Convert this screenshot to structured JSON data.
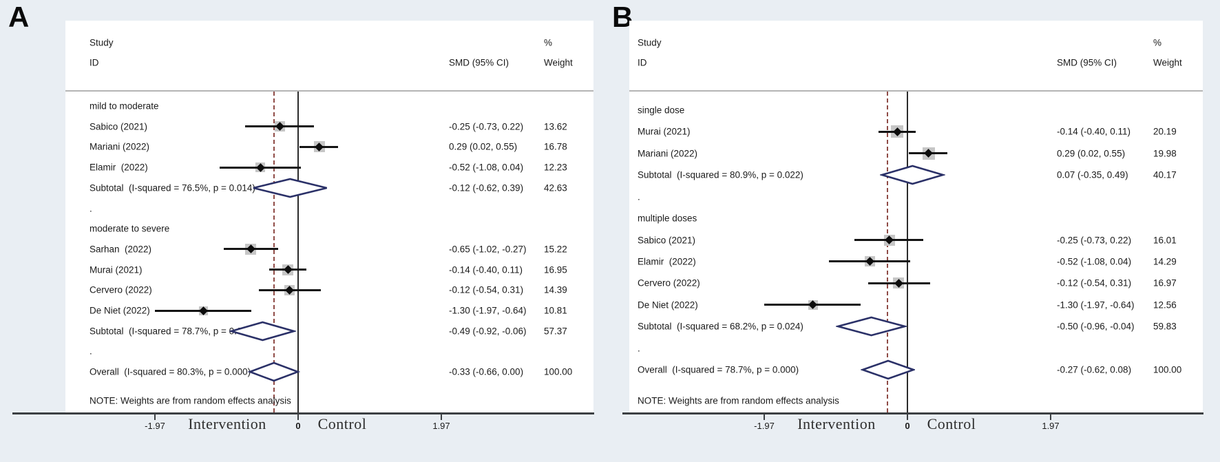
{
  "chart_data": {
    "type": "forest",
    "note_shared": "NOTE: Weights are from random effects analysis",
    "colors": {
      "background": "#e9eef3",
      "plot_background": "#ffffff",
      "diamond_outline": "#2b3168",
      "overall_dashed_line": "#8f4b46",
      "ci_line": "#141414",
      "text": "#1b1b1b"
    },
    "panels": [
      {
        "panel_label": "A",
        "columns": {
          "study_line1": "Study",
          "study_line2": "ID",
          "pct": "%",
          "smd": "SMD (95% CI)",
          "weight": "Weight"
        },
        "note": "NOTE: Weights are from random effects analysis",
        "axis": {
          "tick_labels": [
            "-1.97",
            "0",
            "1.97"
          ],
          "tick_values": [
            -1.97,
            0,
            1.97
          ],
          "left_label": "Intervention",
          "right_label": "Control",
          "null_line": 0,
          "overall_dashed_at": -0.33
        },
        "rows": [
          {
            "kind": "group",
            "label": "mild to moderate"
          },
          {
            "kind": "study",
            "label": "Sabico (2021)",
            "est": -0.25,
            "lo": -0.73,
            "hi": 0.22,
            "smd_text": "-0.25 (-0.73, 0.22)",
            "weight": 13.62,
            "weight_text": "13.62"
          },
          {
            "kind": "study",
            "label": "Mariani (2022)",
            "est": 0.29,
            "lo": 0.02,
            "hi": 0.55,
            "smd_text": "0.29 (0.02, 0.55)",
            "weight": 16.78,
            "weight_text": "16.78"
          },
          {
            "kind": "study",
            "label": "Elamir  (2022)",
            "est": -0.52,
            "lo": -1.08,
            "hi": 0.04,
            "smd_text": "-0.52 (-1.08, 0.04)",
            "weight": 12.23,
            "weight_text": "12.23"
          },
          {
            "kind": "subtotal",
            "label": "Subtotal  (I-squared = 76.5%, p = 0.014)",
            "est": -0.12,
            "lo": -0.62,
            "hi": 0.39,
            "smd_text": "-0.12 (-0.62, 0.39)",
            "weight_text": "42.63"
          },
          {
            "kind": "dot",
            "label": "."
          },
          {
            "kind": "group",
            "label": "moderate to severe"
          },
          {
            "kind": "study",
            "label": "Sarhan  (2022)",
            "est": -0.65,
            "lo": -1.02,
            "hi": -0.27,
            "smd_text": "-0.65 (-1.02, -0.27)",
            "weight": 15.22,
            "weight_text": "15.22"
          },
          {
            "kind": "study",
            "label": "Murai (2021)",
            "est": -0.14,
            "lo": -0.4,
            "hi": 0.11,
            "smd_text": "-0.14 (-0.40, 0.11)",
            "weight": 16.95,
            "weight_text": "16.95"
          },
          {
            "kind": "study",
            "label": "Cervero (2022)",
            "est": -0.12,
            "lo": -0.54,
            "hi": 0.31,
            "smd_text": "-0.12 (-0.54, 0.31)",
            "weight": 14.39,
            "weight_text": "14.39"
          },
          {
            "kind": "study",
            "label": "De Niet (2022)",
            "est": -1.3,
            "lo": -1.97,
            "hi": -0.64,
            "smd_text": "-1.30 (-1.97, -0.64)",
            "weight": 10.81,
            "weight_text": "10.81"
          },
          {
            "kind": "subtotal",
            "label": "Subtotal  (I-squared = 78.7%, p = 0.003)",
            "est": -0.49,
            "lo": -0.92,
            "hi": -0.06,
            "smd_text": "-0.49 (-0.92, -0.06)",
            "weight_text": "57.37"
          },
          {
            "kind": "dot",
            "label": "."
          },
          {
            "kind": "overall",
            "label": "Overall  (I-squared = 80.3%, p = 0.000)",
            "est": -0.33,
            "lo": -0.66,
            "hi": 0.0,
            "smd_text": "-0.33 (-0.66, 0.00)",
            "weight_text": "100.00"
          }
        ]
      },
      {
        "panel_label": "B",
        "columns": {
          "study_line1": "Study",
          "study_line2": "ID",
          "pct": "%",
          "smd": "SMD (95% CI)",
          "weight": "Weight"
        },
        "note": "NOTE: Weights are from random effects analysis",
        "axis": {
          "tick_labels": [
            "-1.97",
            "0",
            "1.97"
          ],
          "tick_values": [
            -1.97,
            0,
            1.97
          ],
          "left_label": "Intervention",
          "right_label": "Control",
          "null_line": 0,
          "overall_dashed_at": -0.27
        },
        "rows": [
          {
            "kind": "group",
            "label": "single dose"
          },
          {
            "kind": "study",
            "label": "Murai (2021)",
            "est": -0.14,
            "lo": -0.4,
            "hi": 0.11,
            "smd_text": "-0.14 (-0.40, 0.11)",
            "weight": 20.19,
            "weight_text": "20.19"
          },
          {
            "kind": "study",
            "label": "Mariani (2022)",
            "est": 0.29,
            "lo": 0.02,
            "hi": 0.55,
            "smd_text": "0.29 (0.02, 0.55)",
            "weight": 19.98,
            "weight_text": "19.98"
          },
          {
            "kind": "subtotal",
            "label": "Subtotal  (I-squared = 80.9%, p = 0.022)",
            "est": 0.07,
            "lo": -0.35,
            "hi": 0.49,
            "smd_text": "0.07 (-0.35, 0.49)",
            "weight_text": "40.17"
          },
          {
            "kind": "dot",
            "label": "."
          },
          {
            "kind": "group",
            "label": "multiple doses"
          },
          {
            "kind": "study",
            "label": "Sabico (2021)",
            "est": -0.25,
            "lo": -0.73,
            "hi": 0.22,
            "smd_text": "-0.25 (-0.73, 0.22)",
            "weight": 16.01,
            "weight_text": "16.01"
          },
          {
            "kind": "study",
            "label": "Elamir  (2022)",
            "est": -0.52,
            "lo": -1.08,
            "hi": 0.04,
            "smd_text": "-0.52 (-1.08, 0.04)",
            "weight": 14.29,
            "weight_text": "14.29"
          },
          {
            "kind": "study",
            "label": "Cervero (2022)",
            "est": -0.12,
            "lo": -0.54,
            "hi": 0.31,
            "smd_text": "-0.12 (-0.54, 0.31)",
            "weight": 16.97,
            "weight_text": "16.97"
          },
          {
            "kind": "study",
            "label": "De Niet (2022)",
            "est": -1.3,
            "lo": -1.97,
            "hi": -0.64,
            "smd_text": "-1.30 (-1.97, -0.64)",
            "weight": 12.56,
            "weight_text": "12.56"
          },
          {
            "kind": "subtotal",
            "label": "Subtotal  (I-squared = 68.2%, p = 0.024)",
            "est": -0.5,
            "lo": -0.96,
            "hi": -0.04,
            "smd_text": "-0.50 (-0.96, -0.04)",
            "weight_text": "59.83"
          },
          {
            "kind": "dot",
            "label": "."
          },
          {
            "kind": "overall",
            "label": "Overall  (I-squared = 78.7%, p = 0.000)",
            "est": -0.27,
            "lo": -0.62,
            "hi": 0.08,
            "smd_text": "-0.27 (-0.62, 0.08)",
            "weight_text": "100.00"
          }
        ]
      }
    ]
  }
}
